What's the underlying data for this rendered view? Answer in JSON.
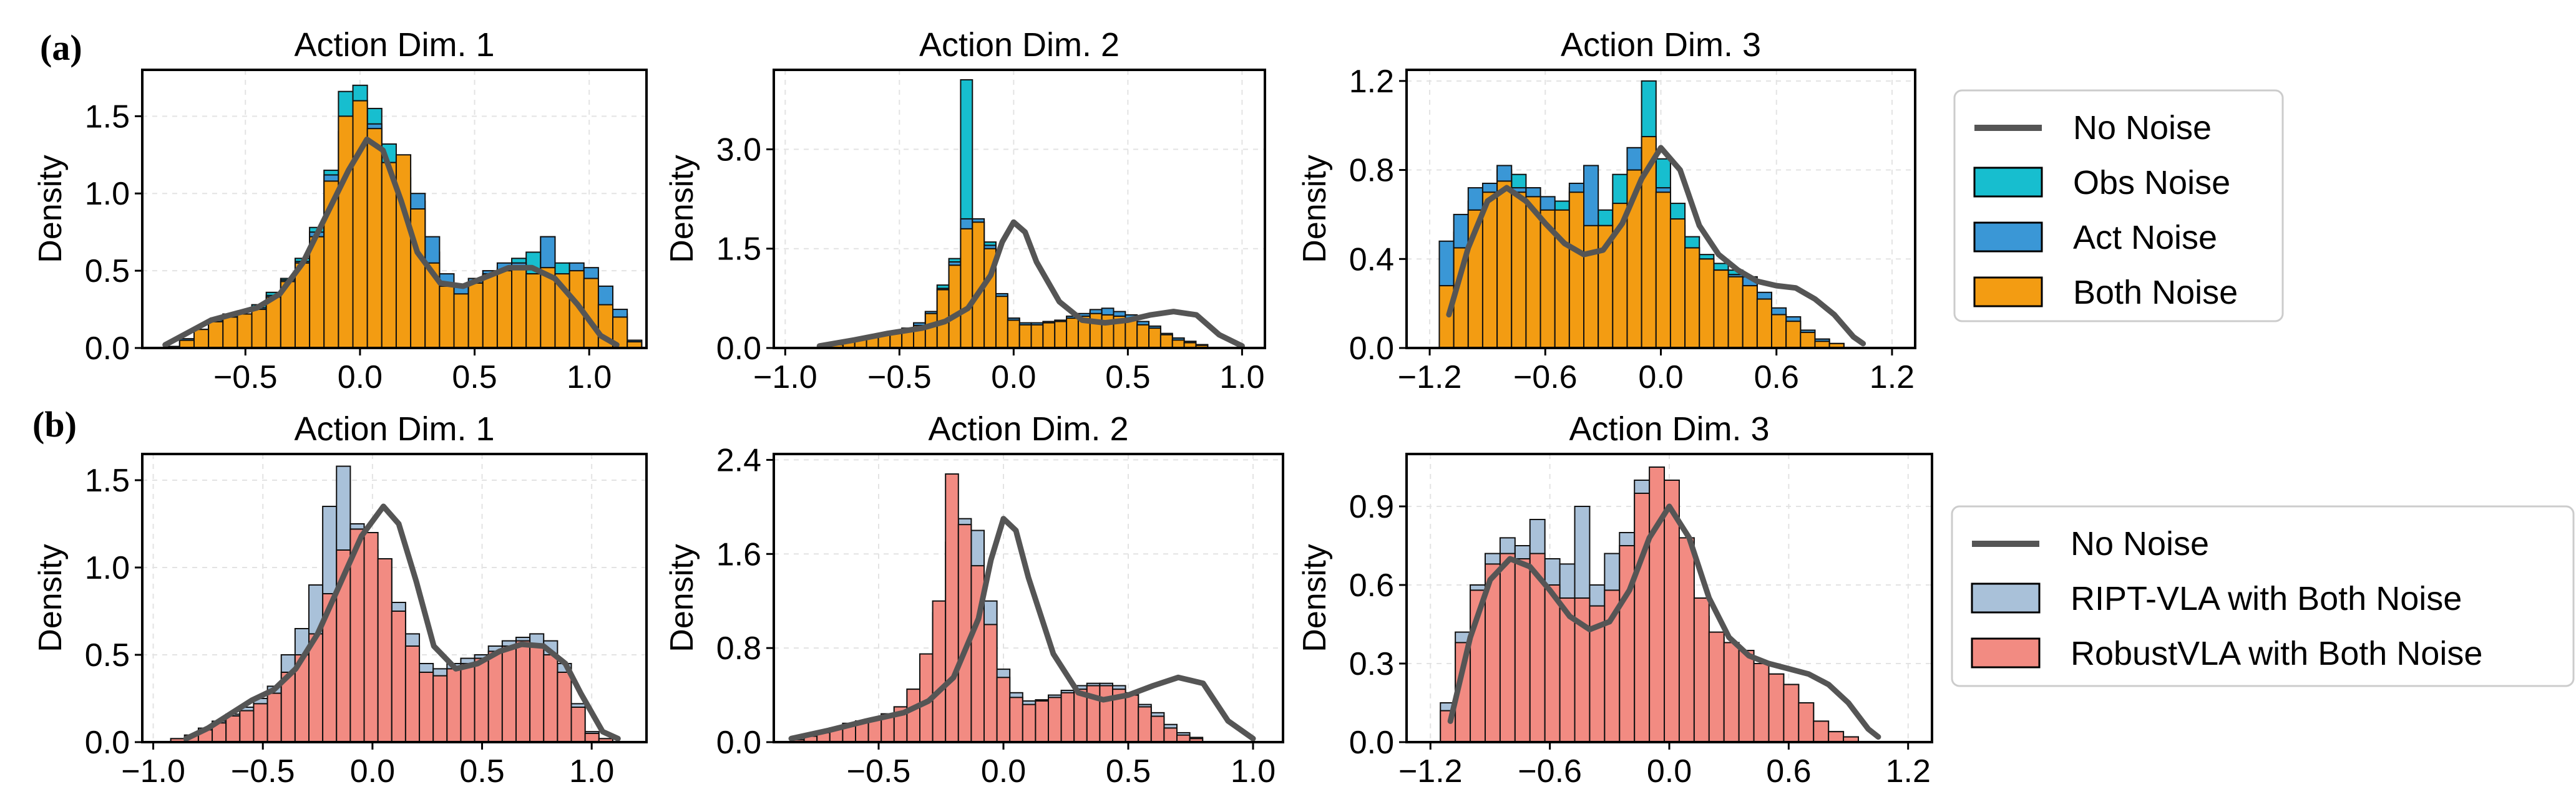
{
  "figure": {
    "row_labels": [
      "(a)",
      "(b)"
    ],
    "legend_a": [
      {
        "label": "No Noise",
        "color": "#555555",
        "kind": "line"
      },
      {
        "label": "Obs Noise",
        "color": "#17becf",
        "kind": "patch"
      },
      {
        "label": "Act Noise",
        "color": "#3a97d6",
        "kind": "patch"
      },
      {
        "label": "Both Noise",
        "color": "#f39c12",
        "kind": "patch"
      }
    ],
    "legend_b": [
      {
        "label": "No Noise",
        "color": "#555555",
        "kind": "line"
      },
      {
        "label": "RIPT-VLA with Both Noise",
        "color": "#a9c1d9",
        "kind": "patch"
      },
      {
        "label": "RobustVLA with Both Noise",
        "color": "#f28b82",
        "kind": "patch"
      }
    ]
  },
  "chart_data": [
    {
      "type": "histogram",
      "title": "Action Dim. 1",
      "ylabel": "Density",
      "grid": true,
      "xlim": [
        -0.95,
        1.25
      ],
      "ylim": [
        0,
        1.8
      ],
      "xticks": [
        -0.5,
        0.0,
        0.5,
        1.0
      ],
      "xtick_labels": [
        "−0.5",
        "0.0",
        "0.5",
        "1.0"
      ],
      "yticks": [
        0,
        0.5,
        1.0,
        1.5
      ],
      "ytick_labels": [
        "0.0",
        "0.5",
        "1.0",
        "1.5"
      ],
      "bin_start": -0.85,
      "bin_width": 0.063,
      "series": [
        {
          "name": "Obs Noise",
          "color": "#17becf",
          "values": [
            0.01,
            0.05,
            0.12,
            0.18,
            0.22,
            0.22,
            0.28,
            0.36,
            0.45,
            0.58,
            0.78,
            1.15,
            1.66,
            1.7,
            1.55,
            1.32,
            1.1,
            0.95,
            0.62,
            0.42,
            0.38,
            0.42,
            0.48,
            0.52,
            0.58,
            0.62,
            0.72,
            0.55,
            0.52,
            0.5,
            0.36,
            0.22,
            0.05
          ]
        },
        {
          "name": "Act Noise",
          "color": "#3a97d6",
          "values": [
            0.01,
            0.06,
            0.12,
            0.18,
            0.2,
            0.22,
            0.26,
            0.34,
            0.44,
            0.56,
            0.75,
            1.12,
            1.4,
            1.6,
            1.45,
            1.2,
            1.15,
            1.0,
            0.72,
            0.48,
            0.4,
            0.45,
            0.5,
            0.55,
            0.55,
            0.48,
            0.72,
            0.45,
            0.55,
            0.52,
            0.4,
            0.25,
            0.05
          ]
        },
        {
          "name": "Both Noise",
          "color": "#f39c12",
          "values": [
            0.01,
            0.05,
            0.12,
            0.17,
            0.2,
            0.22,
            0.25,
            0.33,
            0.43,
            0.55,
            0.72,
            1.08,
            1.5,
            1.6,
            1.42,
            1.2,
            1.25,
            0.9,
            0.55,
            0.4,
            0.35,
            0.42,
            0.48,
            0.5,
            0.52,
            0.48,
            0.52,
            0.48,
            0.5,
            0.45,
            0.28,
            0.2,
            0.04
          ]
        }
      ],
      "kde": {
        "name": "No Noise",
        "color": "#555555",
        "x": [
          -0.85,
          -0.75,
          -0.65,
          -0.55,
          -0.45,
          -0.35,
          -0.25,
          -0.15,
          -0.05,
          0.03,
          0.1,
          0.18,
          0.25,
          0.35,
          0.45,
          0.55,
          0.65,
          0.75,
          0.85,
          0.95,
          1.05,
          1.12
        ],
        "y": [
          0.02,
          0.1,
          0.18,
          0.22,
          0.26,
          0.35,
          0.55,
          0.85,
          1.15,
          1.35,
          1.28,
          0.95,
          0.62,
          0.42,
          0.4,
          0.46,
          0.52,
          0.52,
          0.45,
          0.28,
          0.08,
          0.02
        ]
      }
    },
    {
      "type": "histogram",
      "title": "Action Dim. 2",
      "ylabel": "Density",
      "grid": true,
      "xlim": [
        -1.05,
        1.1
      ],
      "ylim": [
        0,
        4.2
      ],
      "xticks": [
        -1.0,
        -0.5,
        0.0,
        0.5,
        1.0
      ],
      "xtick_labels": [
        "−1.0",
        "−0.5",
        "0.0",
        "0.5",
        "1.0"
      ],
      "yticks": [
        0,
        1.5,
        3.0
      ],
      "ytick_labels": [
        "0.0",
        "1.5",
        "3.0"
      ],
      "bin_start": -0.85,
      "bin_width": 0.0515,
      "series": [
        {
          "name": "Obs Noise",
          "color": "#17becf",
          "values": [
            0.02,
            0.05,
            0.1,
            0.14,
            0.18,
            0.2,
            0.22,
            0.28,
            0.35,
            0.55,
            0.95,
            1.35,
            4.05,
            1.9,
            1.6,
            0.8,
            0.45,
            0.35,
            0.35,
            0.38,
            0.4,
            0.45,
            0.5,
            0.55,
            0.55,
            0.5,
            0.45,
            0.35,
            0.3,
            0.2,
            0.15,
            0.1,
            0.05
          ]
        },
        {
          "name": "Act Noise",
          "color": "#3a97d6",
          "values": [
            0.02,
            0.06,
            0.1,
            0.15,
            0.18,
            0.22,
            0.25,
            0.3,
            0.38,
            0.55,
            0.9,
            1.3,
            1.95,
            1.95,
            1.55,
            0.82,
            0.45,
            0.38,
            0.38,
            0.4,
            0.42,
            0.48,
            0.52,
            0.58,
            0.6,
            0.55,
            0.5,
            0.4,
            0.33,
            0.22,
            0.15,
            0.1,
            0.05
          ]
        },
        {
          "name": "Both Noise",
          "color": "#f39c12",
          "values": [
            0.02,
            0.05,
            0.09,
            0.13,
            0.17,
            0.2,
            0.22,
            0.27,
            0.34,
            0.52,
            0.88,
            1.25,
            1.8,
            1.9,
            1.5,
            0.78,
            0.42,
            0.35,
            0.35,
            0.38,
            0.4,
            0.45,
            0.48,
            0.52,
            0.5,
            0.48,
            0.42,
            0.35,
            0.3,
            0.2,
            0.12,
            0.08,
            0.04
          ]
        }
      ],
      "kde": {
        "name": "No Noise",
        "color": "#555555",
        "x": [
          -0.85,
          -0.7,
          -0.55,
          -0.4,
          -0.3,
          -0.2,
          -0.1,
          -0.05,
          0.0,
          0.05,
          0.1,
          0.2,
          0.3,
          0.4,
          0.5,
          0.6,
          0.7,
          0.8,
          0.9,
          1.0
        ],
        "y": [
          0.03,
          0.12,
          0.22,
          0.3,
          0.4,
          0.6,
          1.1,
          1.6,
          1.9,
          1.75,
          1.3,
          0.7,
          0.42,
          0.38,
          0.42,
          0.5,
          0.55,
          0.5,
          0.2,
          0.03
        ]
      }
    },
    {
      "type": "histogram",
      "title": "Action Dim. 3",
      "ylabel": "Density",
      "grid": true,
      "xlim": [
        -1.32,
        1.32
      ],
      "ylim": [
        0,
        1.25
      ],
      "xticks": [
        -1.2,
        -0.6,
        0.0,
        0.6,
        1.2
      ],
      "xtick_labels": [
        "−1.2",
        "−0.6",
        "0.0",
        "0.6",
        "1.2"
      ],
      "yticks": [
        0,
        0.4,
        0.8,
        1.2
      ],
      "ytick_labels": [
        "0.0",
        "0.4",
        "0.8",
        "1.2"
      ],
      "bin_start": -1.15,
      "bin_width": 0.075,
      "series": [
        {
          "name": "Obs Noise",
          "color": "#17becf",
          "values": [
            0.3,
            0.52,
            0.66,
            0.72,
            0.8,
            0.78,
            0.72,
            0.65,
            0.66,
            0.72,
            0.56,
            0.62,
            0.78,
            0.9,
            1.2,
            0.85,
            0.65,
            0.5,
            0.42,
            0.38,
            0.35,
            0.3,
            0.22,
            0.15,
            0.12,
            0.08,
            0.04,
            0.02
          ]
        },
        {
          "name": "Act Noise",
          "color": "#3a97d6",
          "values": [
            0.48,
            0.6,
            0.72,
            0.74,
            0.82,
            0.72,
            0.72,
            0.68,
            0.6,
            0.74,
            0.82,
            0.55,
            0.62,
            0.9,
            0.88,
            0.72,
            0.55,
            0.45,
            0.4,
            0.35,
            0.33,
            0.32,
            0.25,
            0.18,
            0.14,
            0.08,
            0.04,
            0.02
          ]
        },
        {
          "name": "Both Noise",
          "color": "#f39c12",
          "values": [
            0.28,
            0.45,
            0.62,
            0.7,
            0.75,
            0.7,
            0.68,
            0.62,
            0.62,
            0.7,
            0.55,
            0.55,
            0.65,
            0.8,
            0.95,
            0.7,
            0.58,
            0.45,
            0.4,
            0.35,
            0.32,
            0.28,
            0.22,
            0.15,
            0.12,
            0.07,
            0.03,
            0.02
          ]
        }
      ],
      "kde": {
        "name": "No Noise",
        "color": "#555555",
        "x": [
          -1.1,
          -1.0,
          -0.9,
          -0.8,
          -0.7,
          -0.6,
          -0.5,
          -0.4,
          -0.3,
          -0.2,
          -0.1,
          0.0,
          0.1,
          0.2,
          0.3,
          0.4,
          0.5,
          0.6,
          0.7,
          0.8,
          0.9,
          1.0,
          1.05
        ],
        "y": [
          0.15,
          0.45,
          0.66,
          0.72,
          0.66,
          0.56,
          0.47,
          0.42,
          0.44,
          0.56,
          0.76,
          0.9,
          0.8,
          0.55,
          0.42,
          0.35,
          0.3,
          0.28,
          0.27,
          0.22,
          0.15,
          0.05,
          0.02
        ]
      }
    },
    {
      "type": "histogram",
      "title": "Action Dim. 1",
      "ylabel": "Density",
      "grid": true,
      "xlim": [
        -1.05,
        1.25
      ],
      "ylim": [
        0,
        1.65
      ],
      "xticks": [
        -1.0,
        -0.5,
        0.0,
        0.5,
        1.0
      ],
      "xtick_labels": [
        "−1.0",
        "−0.5",
        "0.0",
        "0.5",
        "1.0"
      ],
      "yticks": [
        0,
        0.5,
        1.0,
        1.5
      ],
      "ytick_labels": [
        "0.0",
        "0.5",
        "1.0",
        "1.5"
      ],
      "bin_start": -0.92,
      "bin_width": 0.063,
      "series": [
        {
          "name": "RIPT-VLA with Both Noise",
          "color": "#a9c1d9",
          "values": [
            0.02,
            0.04,
            0.08,
            0.12,
            0.16,
            0.2,
            0.25,
            0.32,
            0.5,
            0.65,
            0.9,
            1.35,
            1.58,
            1.25,
            1.1,
            1.05,
            0.8,
            0.62,
            0.45,
            0.42,
            0.45,
            0.48,
            0.5,
            0.55,
            0.58,
            0.6,
            0.62,
            0.58,
            0.45,
            0.22,
            0.06,
            0.02
          ]
        },
        {
          "name": "RobustVLA with Both Noise",
          "color": "#f28b82",
          "values": [
            0.02,
            0.04,
            0.07,
            0.11,
            0.15,
            0.18,
            0.22,
            0.28,
            0.4,
            0.5,
            0.62,
            0.85,
            1.1,
            1.22,
            1.2,
            1.05,
            0.75,
            0.55,
            0.4,
            0.38,
            0.42,
            0.45,
            0.48,
            0.52,
            0.55,
            0.58,
            0.55,
            0.5,
            0.4,
            0.2,
            0.05,
            0.02
          ]
        }
      ],
      "kde": {
        "name": "No Noise",
        "color": "#555555",
        "x": [
          -0.85,
          -0.75,
          -0.65,
          -0.55,
          -0.45,
          -0.35,
          -0.25,
          -0.15,
          -0.05,
          0.05,
          0.12,
          0.2,
          0.28,
          0.38,
          0.48,
          0.58,
          0.68,
          0.78,
          0.88,
          0.95,
          1.05,
          1.12
        ],
        "y": [
          0.02,
          0.08,
          0.16,
          0.24,
          0.3,
          0.42,
          0.62,
          0.9,
          1.18,
          1.35,
          1.25,
          0.92,
          0.55,
          0.42,
          0.45,
          0.52,
          0.56,
          0.55,
          0.45,
          0.28,
          0.06,
          0.02
        ]
      }
    },
    {
      "type": "histogram",
      "title": "Action Dim. 2",
      "ylabel": "Density",
      "grid": true,
      "xlim": [
        -0.92,
        1.12
      ],
      "ylim": [
        0,
        2.45
      ],
      "xticks": [
        -0.5,
        0.0,
        0.5,
        1.0
      ],
      "xtick_labels": [
        "−0.5",
        "0.0",
        "0.5",
        "1.0"
      ],
      "yticks": [
        0,
        0.8,
        1.6,
        2.4
      ],
      "ytick_labels": [
        "0.0",
        "0.8",
        "1.6",
        "2.4"
      ],
      "bin_start": -0.85,
      "bin_width": 0.0515,
      "series": [
        {
          "name": "RIPT-VLA with Both Noise",
          "color": "#a9c1d9",
          "values": [
            0.02,
            0.05,
            0.08,
            0.12,
            0.16,
            0.18,
            0.2,
            0.24,
            0.3,
            0.45,
            0.72,
            1.1,
            1.7,
            1.9,
            1.8,
            1.2,
            0.62,
            0.42,
            0.35,
            0.36,
            0.4,
            0.44,
            0.48,
            0.5,
            0.5,
            0.48,
            0.42,
            0.32,
            0.25,
            0.15,
            0.08,
            0.04
          ]
        },
        {
          "name": "RobustVLA with Both Noise",
          "color": "#f28b82",
          "values": [
            0.02,
            0.05,
            0.08,
            0.12,
            0.15,
            0.18,
            0.2,
            0.24,
            0.3,
            0.45,
            0.75,
            1.2,
            2.28,
            1.85,
            1.5,
            1.0,
            0.55,
            0.38,
            0.32,
            0.35,
            0.38,
            0.42,
            0.45,
            0.48,
            0.48,
            0.45,
            0.4,
            0.3,
            0.22,
            0.12,
            0.06,
            0.03
          ]
        }
      ],
      "kde": {
        "name": "No Noise",
        "color": "#555555",
        "x": [
          -0.85,
          -0.7,
          -0.55,
          -0.4,
          -0.3,
          -0.2,
          -0.1,
          -0.05,
          0.0,
          0.05,
          0.1,
          0.2,
          0.3,
          0.4,
          0.5,
          0.6,
          0.7,
          0.8,
          0.9,
          1.0
        ],
        "y": [
          0.03,
          0.1,
          0.18,
          0.25,
          0.35,
          0.55,
          1.05,
          1.55,
          1.9,
          1.8,
          1.4,
          0.75,
          0.42,
          0.36,
          0.4,
          0.48,
          0.55,
          0.5,
          0.18,
          0.03
        ]
      }
    },
    {
      "type": "histogram",
      "title": "Action Dim. 3",
      "ylabel": "Density",
      "grid": true,
      "xlim": [
        -1.32,
        1.32
      ],
      "ylim": [
        0,
        1.1
      ],
      "xticks": [
        -1.2,
        -0.6,
        0.0,
        0.6,
        1.2
      ],
      "xtick_labels": [
        "−1.2",
        "−0.6",
        "0.0",
        "0.6",
        "1.2"
      ],
      "yticks": [
        0,
        0.3,
        0.6,
        0.9
      ],
      "ytick_labels": [
        "0.0",
        "0.3",
        "0.6",
        "0.9"
      ],
      "bin_start": -1.15,
      "bin_width": 0.075,
      "series": [
        {
          "name": "RIPT-VLA with Both Noise",
          "color": "#a9c1d9",
          "values": [
            0.15,
            0.42,
            0.6,
            0.72,
            0.78,
            0.75,
            0.85,
            0.7,
            0.68,
            0.9,
            0.6,
            0.72,
            0.8,
            1.0,
            0.92,
            0.75,
            0.58,
            0.48,
            0.4,
            0.35,
            0.32,
            0.3,
            0.26,
            0.22,
            0.15,
            0.08,
            0.04,
            0.02
          ]
        },
        {
          "name": "RobustVLA with Both Noise",
          "color": "#f28b82",
          "values": [
            0.12,
            0.38,
            0.58,
            0.68,
            0.72,
            0.7,
            0.72,
            0.6,
            0.55,
            0.55,
            0.52,
            0.58,
            0.75,
            0.95,
            1.05,
            1.0,
            0.78,
            0.55,
            0.42,
            0.38,
            0.35,
            0.3,
            0.26,
            0.22,
            0.15,
            0.08,
            0.04,
            0.02
          ]
        }
      ],
      "kde": {
        "name": "No Noise",
        "color": "#555555",
        "x": [
          -1.1,
          -1.0,
          -0.9,
          -0.8,
          -0.7,
          -0.6,
          -0.5,
          -0.4,
          -0.3,
          -0.2,
          -0.1,
          0.0,
          0.1,
          0.2,
          0.3,
          0.4,
          0.5,
          0.6,
          0.7,
          0.8,
          0.9,
          1.0,
          1.05
        ],
        "y": [
          0.08,
          0.4,
          0.62,
          0.7,
          0.67,
          0.58,
          0.48,
          0.43,
          0.46,
          0.58,
          0.78,
          0.9,
          0.78,
          0.55,
          0.4,
          0.33,
          0.3,
          0.28,
          0.26,
          0.22,
          0.15,
          0.05,
          0.02
        ]
      }
    }
  ]
}
